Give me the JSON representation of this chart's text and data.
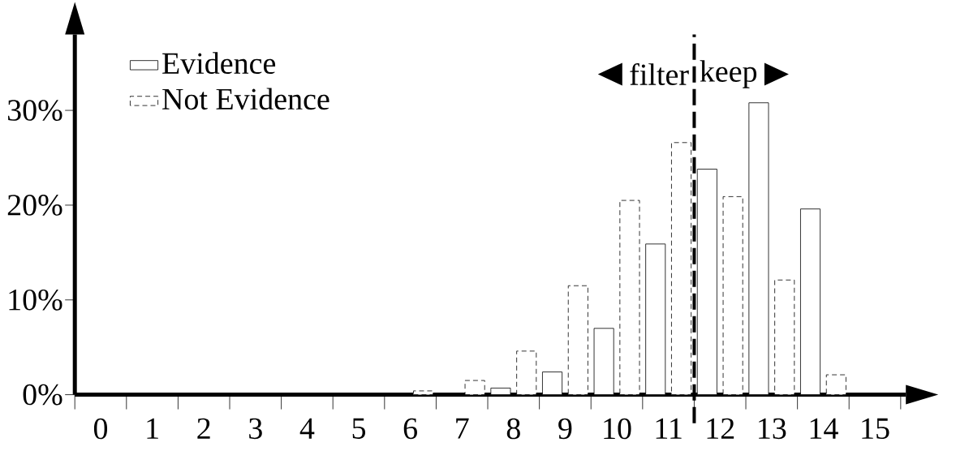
{
  "chart_data": {
    "type": "bar",
    "categories": [
      "0",
      "1",
      "2",
      "3",
      "4",
      "5",
      "6",
      "7",
      "8",
      "9",
      "10",
      "11",
      "12",
      "13",
      "14",
      "15"
    ],
    "series": [
      {
        "name": "Evidence",
        "color": "#000000",
        "line_style": "solid",
        "values": [
          0,
          0,
          0,
          0,
          0,
          0,
          0,
          0,
          0.7,
          2.4,
          7.0,
          15.9,
          23.8,
          30.8,
          19.6,
          0
        ]
      },
      {
        "name": "Not Evidence",
        "color": "#000000",
        "line_style": "dashed",
        "values": [
          0,
          0,
          0,
          0,
          0,
          0,
          0.4,
          1.5,
          4.6,
          11.5,
          20.5,
          26.6,
          20.9,
          12.1,
          2.1,
          0
        ]
      }
    ],
    "ylim": [
      0,
      38
    ],
    "yticks": [
      {
        "value": 0,
        "label": "0%"
      },
      {
        "value": 10,
        "label": "10%"
      },
      {
        "value": 20,
        "label": "20%"
      },
      {
        "value": 30,
        "label": "30%"
      }
    ],
    "legend": "top left",
    "annotations": [
      "filter",
      "keep"
    ]
  }
}
